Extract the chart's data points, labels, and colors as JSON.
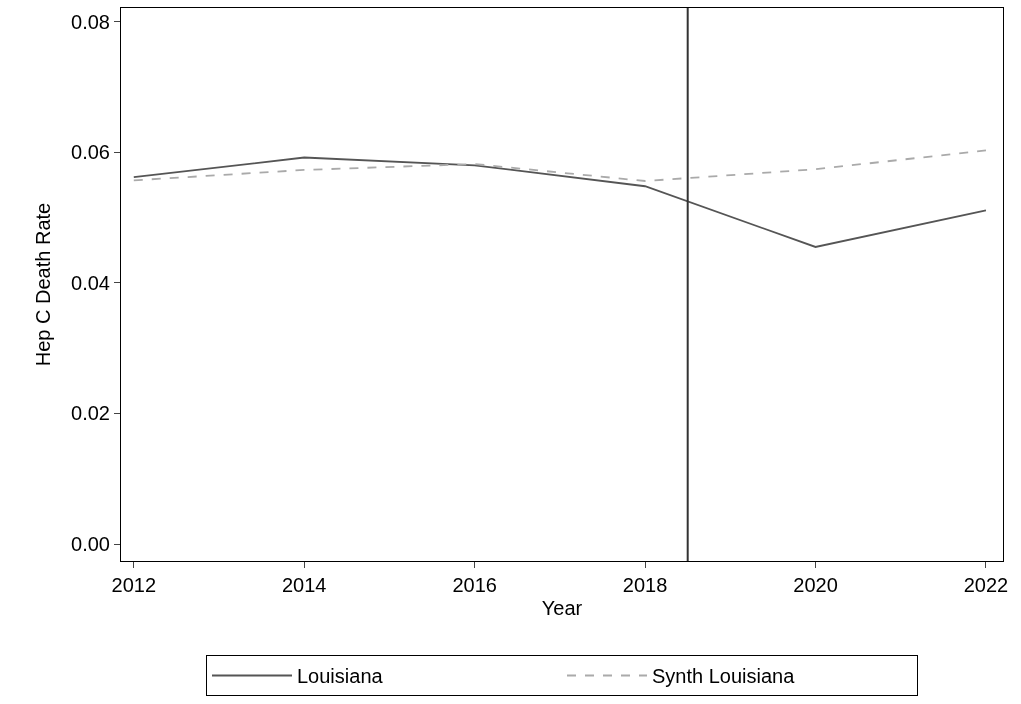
{
  "chart_data": {
    "type": "line",
    "xlabel": "Year",
    "ylabel": "Hep C Death Rate",
    "x": [
      2012,
      2014,
      2016,
      2018,
      2020,
      2022
    ],
    "series": [
      {
        "name": "Louisiana",
        "color": "#555555",
        "line_style": "solid",
        "values": [
          0.0562,
          0.0592,
          0.058,
          0.0548,
          0.0455,
          0.0511
        ]
      },
      {
        "name": "Synth Louisiana",
        "color": "#aaaaaa",
        "line_style": "dashed",
        "values": [
          0.0557,
          0.0573,
          0.0582,
          0.0556,
          0.0574,
          0.0603
        ]
      }
    ],
    "xlim": [
      2011.85,
      2022.2
    ],
    "xticks": [
      2012,
      2014,
      2016,
      2018,
      2020,
      2022
    ],
    "ylim": [
      -0.0026,
      0.0821
    ],
    "yticks": [
      {
        "value": 0,
        "label": "0.00"
      },
      {
        "value": 0.02,
        "label": "0.02"
      },
      {
        "value": 0.04,
        "label": "0.04"
      },
      {
        "value": 0.06,
        "label": "0.06"
      },
      {
        "value": 0.08,
        "label": "0.08"
      }
    ],
    "ref_lines": [
      {
        "axis": "x",
        "value": 2018.5,
        "color": "#333333"
      }
    ],
    "legend": "bottom",
    "marker": "none"
  }
}
